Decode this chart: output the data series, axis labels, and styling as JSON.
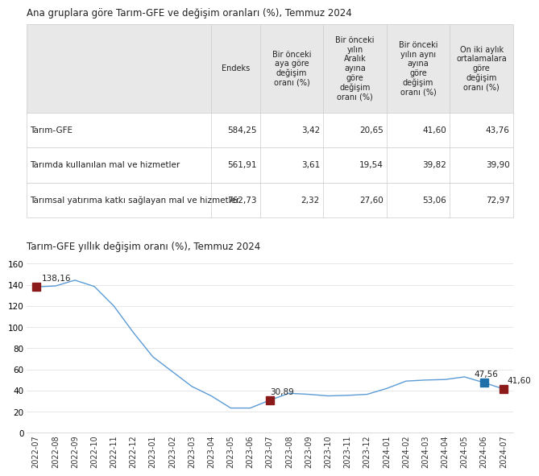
{
  "table_title": "Ana gruplara göre Tarım-GFE ve değişim oranları (%), Temmuz 2024",
  "chart_title": "Tarım-GFE yıllık değişim oranı (%), Temmuz 2024",
  "table_headers": [
    "",
    "Endeks",
    "Bir önceki\naya göre\ndeğişim\noranı (%)",
    "Bir önceki\nyılın\nAralık\nayına\ngöre\ndeğişim\noranı (%)",
    "Bir önceki\nyılın aynı\nayına\ngöre\ndeğişim\noranı (%)",
    "On iki aylık\nortalamalara\ngöre\ndeğişim\noranı (%)"
  ],
  "table_rows": [
    [
      "Tarım-GFE",
      "584,25",
      "3,42",
      "20,65",
      "41,60",
      "43,76"
    ],
    [
      "Tarımda kullanılan mal ve hizmetler",
      "561,91",
      "3,61",
      "19,54",
      "39,82",
      "39,90"
    ],
    [
      "Tarımsal yatırıma katkı sağlayan mal ve hizmetler",
      "762,73",
      "2,32",
      "27,60",
      "53,06",
      "72,97"
    ]
  ],
  "x_labels": [
    "2022-07",
    "2022-08",
    "2022-09",
    "2022-10",
    "2022-11",
    "2022-12",
    "2023-01",
    "2023-02",
    "2023-03",
    "2023-04",
    "2023-05",
    "2023-06",
    "2023-07",
    "2023-08",
    "2023-09",
    "2023-10",
    "2023-11",
    "2023-12",
    "2024-01",
    "2024-02",
    "2024-03",
    "2024-04",
    "2024-05",
    "2024-06",
    "2024-07"
  ],
  "y_values": [
    138.16,
    139.0,
    144.5,
    138.5,
    120.0,
    95.0,
    72.0,
    58.0,
    44.0,
    35.0,
    23.5,
    23.5,
    30.89,
    37.5,
    36.5,
    35.0,
    35.5,
    36.5,
    42.0,
    49.0,
    50.0,
    50.5,
    53.0,
    47.56,
    41.6
  ],
  "annotated_points": [
    {
      "index": 0,
      "label": "138,16",
      "value": 138.16,
      "color": "#8B1A1A"
    },
    {
      "index": 12,
      "label": "30,89",
      "value": 30.89,
      "color": "#8B1A1A"
    },
    {
      "index": 23,
      "label": "47,56",
      "value": 47.56,
      "color": "#1F6FA8"
    },
    {
      "index": 24,
      "label": "41,60",
      "value": 41.6,
      "color": "#8B1A1A"
    }
  ],
  "line_color": "#5B9BD5",
  "marker_color_red": "#8B1A1A",
  "marker_color_blue": "#1F6FA8",
  "yticks": [
    0,
    20,
    40,
    60,
    80,
    100,
    120,
    140,
    160
  ],
  "ylim": [
    0,
    165
  ],
  "bg_color": "#FFFFFF",
  "table_header_bg": "#E8E8E8",
  "table_row_bg": "#FFFFFF",
  "table_border_color": "#CCCCCC",
  "title_fontsize": 8.5,
  "table_fontsize": 7.5,
  "chart_fontsize": 7.5
}
